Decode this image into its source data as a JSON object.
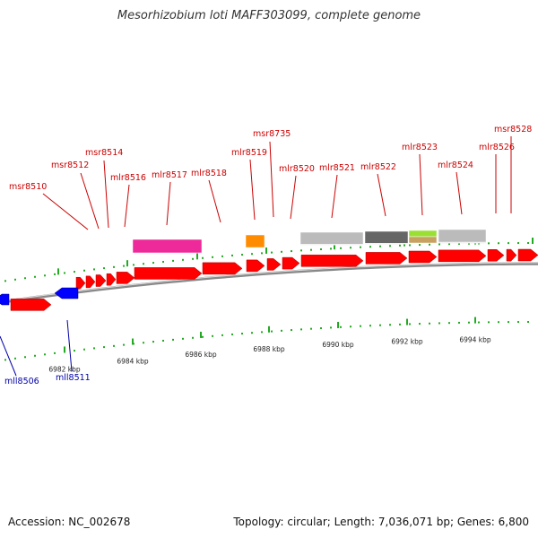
{
  "title": "Mesorhizobium loti MAFF303099, complete genome",
  "footer": {
    "accession": "Accession: NC_002678",
    "summary": "Topology: circular; Length: 7,036,071 bp; Genes: 6,800"
  },
  "colors": {
    "forward_gene": "#ff0000",
    "reverse_gene": "#0000ff",
    "forward_label": "#cc0000",
    "reverse_label": "#0000aa",
    "backbone": "#888888",
    "tick": "#22aa22"
  },
  "scale_labels": [
    "6982 kbp",
    "6984 kbp",
    "6986 kbp",
    "6988 kbp",
    "6990 kbp",
    "6992 kbp",
    "6994 kbp"
  ],
  "upper_labels": [
    "msr8510",
    "msr8512",
    "msr8514",
    "mlr8516",
    "mlr8517",
    "mlr8518",
    "mlr8519",
    "msr8735",
    "mlr8520",
    "mlr8521",
    "mlr8522",
    "mlr8523",
    "mlr8524",
    "mlr8526",
    "msr8528"
  ],
  "lower_labels": [
    "mll8506",
    "mll8511"
  ],
  "feature_colors": [
    "#ee2a9a",
    "#ff8c00",
    "#bbbbbb",
    "#666666",
    "#99e033",
    "#c8a060",
    "#bbbbbb"
  ]
}
